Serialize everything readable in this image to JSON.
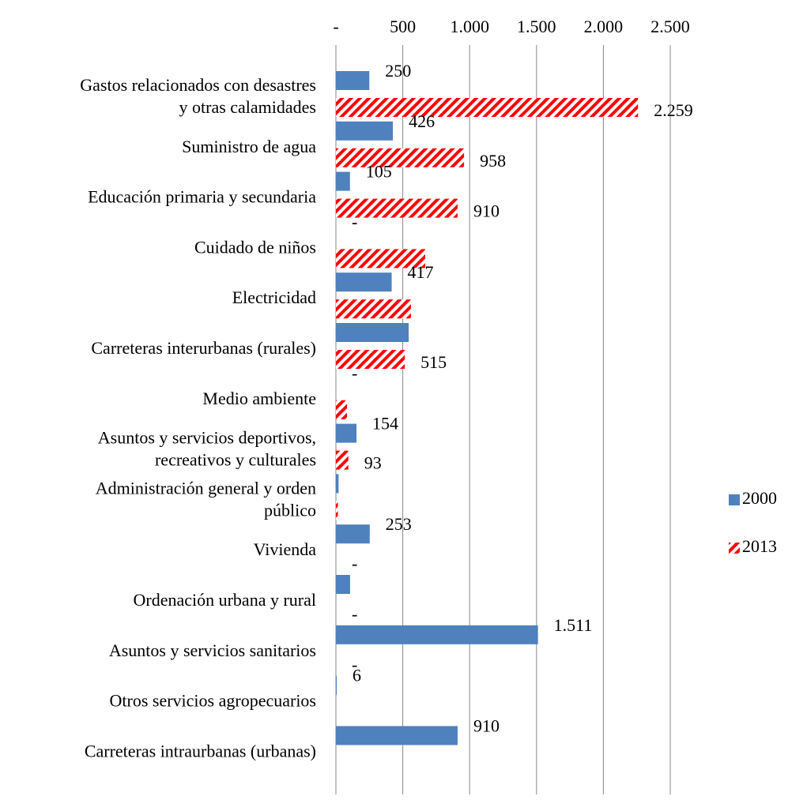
{
  "chart_data": {
    "type": "barh",
    "categories": [
      "Gastos relacionados con desastres\ny otras calamidades",
      "Suministro de agua",
      "Educación primaria y secundaria",
      "Cuidado de niños",
      "Electricidad",
      "Carreteras interurbanas (rurales)",
      "Medio ambiente",
      "Asuntos y servicios deportivos,\nrecreativos y culturales",
      "Administración general  y orden\npúblico",
      "Vivienda",
      "Ordenación urbana y rural",
      "Asuntos y servicios sanitarios",
      "Otros servicios agropecuarios",
      "Carreteras intraurbanas (urbanas)"
    ],
    "series": [
      {
        "name": "2000",
        "color": "#4f81bd",
        "values": [
          250,
          426,
          105,
          0,
          417,
          544,
          0,
          154,
          20,
          253,
          106,
          1511,
          6,
          910
        ],
        "value_labels": [
          "250",
          "426",
          "105",
          "-",
          "417",
          null,
          "-",
          "154",
          null,
          "253",
          null,
          "1.511",
          "6",
          "910"
        ]
      },
      {
        "name": "2013",
        "color": "#ff0000",
        "pattern": "diagonal-stripes",
        "values": [
          2259,
          958,
          910,
          668,
          561,
          515,
          83,
          93,
          15,
          0,
          0,
          0,
          null,
          null
        ],
        "value_labels": [
          "2.259",
          "958",
          "910",
          null,
          null,
          "515",
          null,
          "93",
          null,
          "-",
          "-",
          "-",
          null,
          null
        ]
      }
    ],
    "xlim": [
      0,
      2500
    ],
    "xticks": [
      {
        "value": 0,
        "label": "-"
      },
      500,
      {
        "value": 1000,
        "label": "1.000"
      },
      {
        "value": 1500,
        "label": "1.500"
      },
      {
        "value": 2000,
        "label": "2.000"
      },
      {
        "value": 2500,
        "label": "2.500"
      }
    ],
    "grid": true,
    "legend": "right"
  }
}
